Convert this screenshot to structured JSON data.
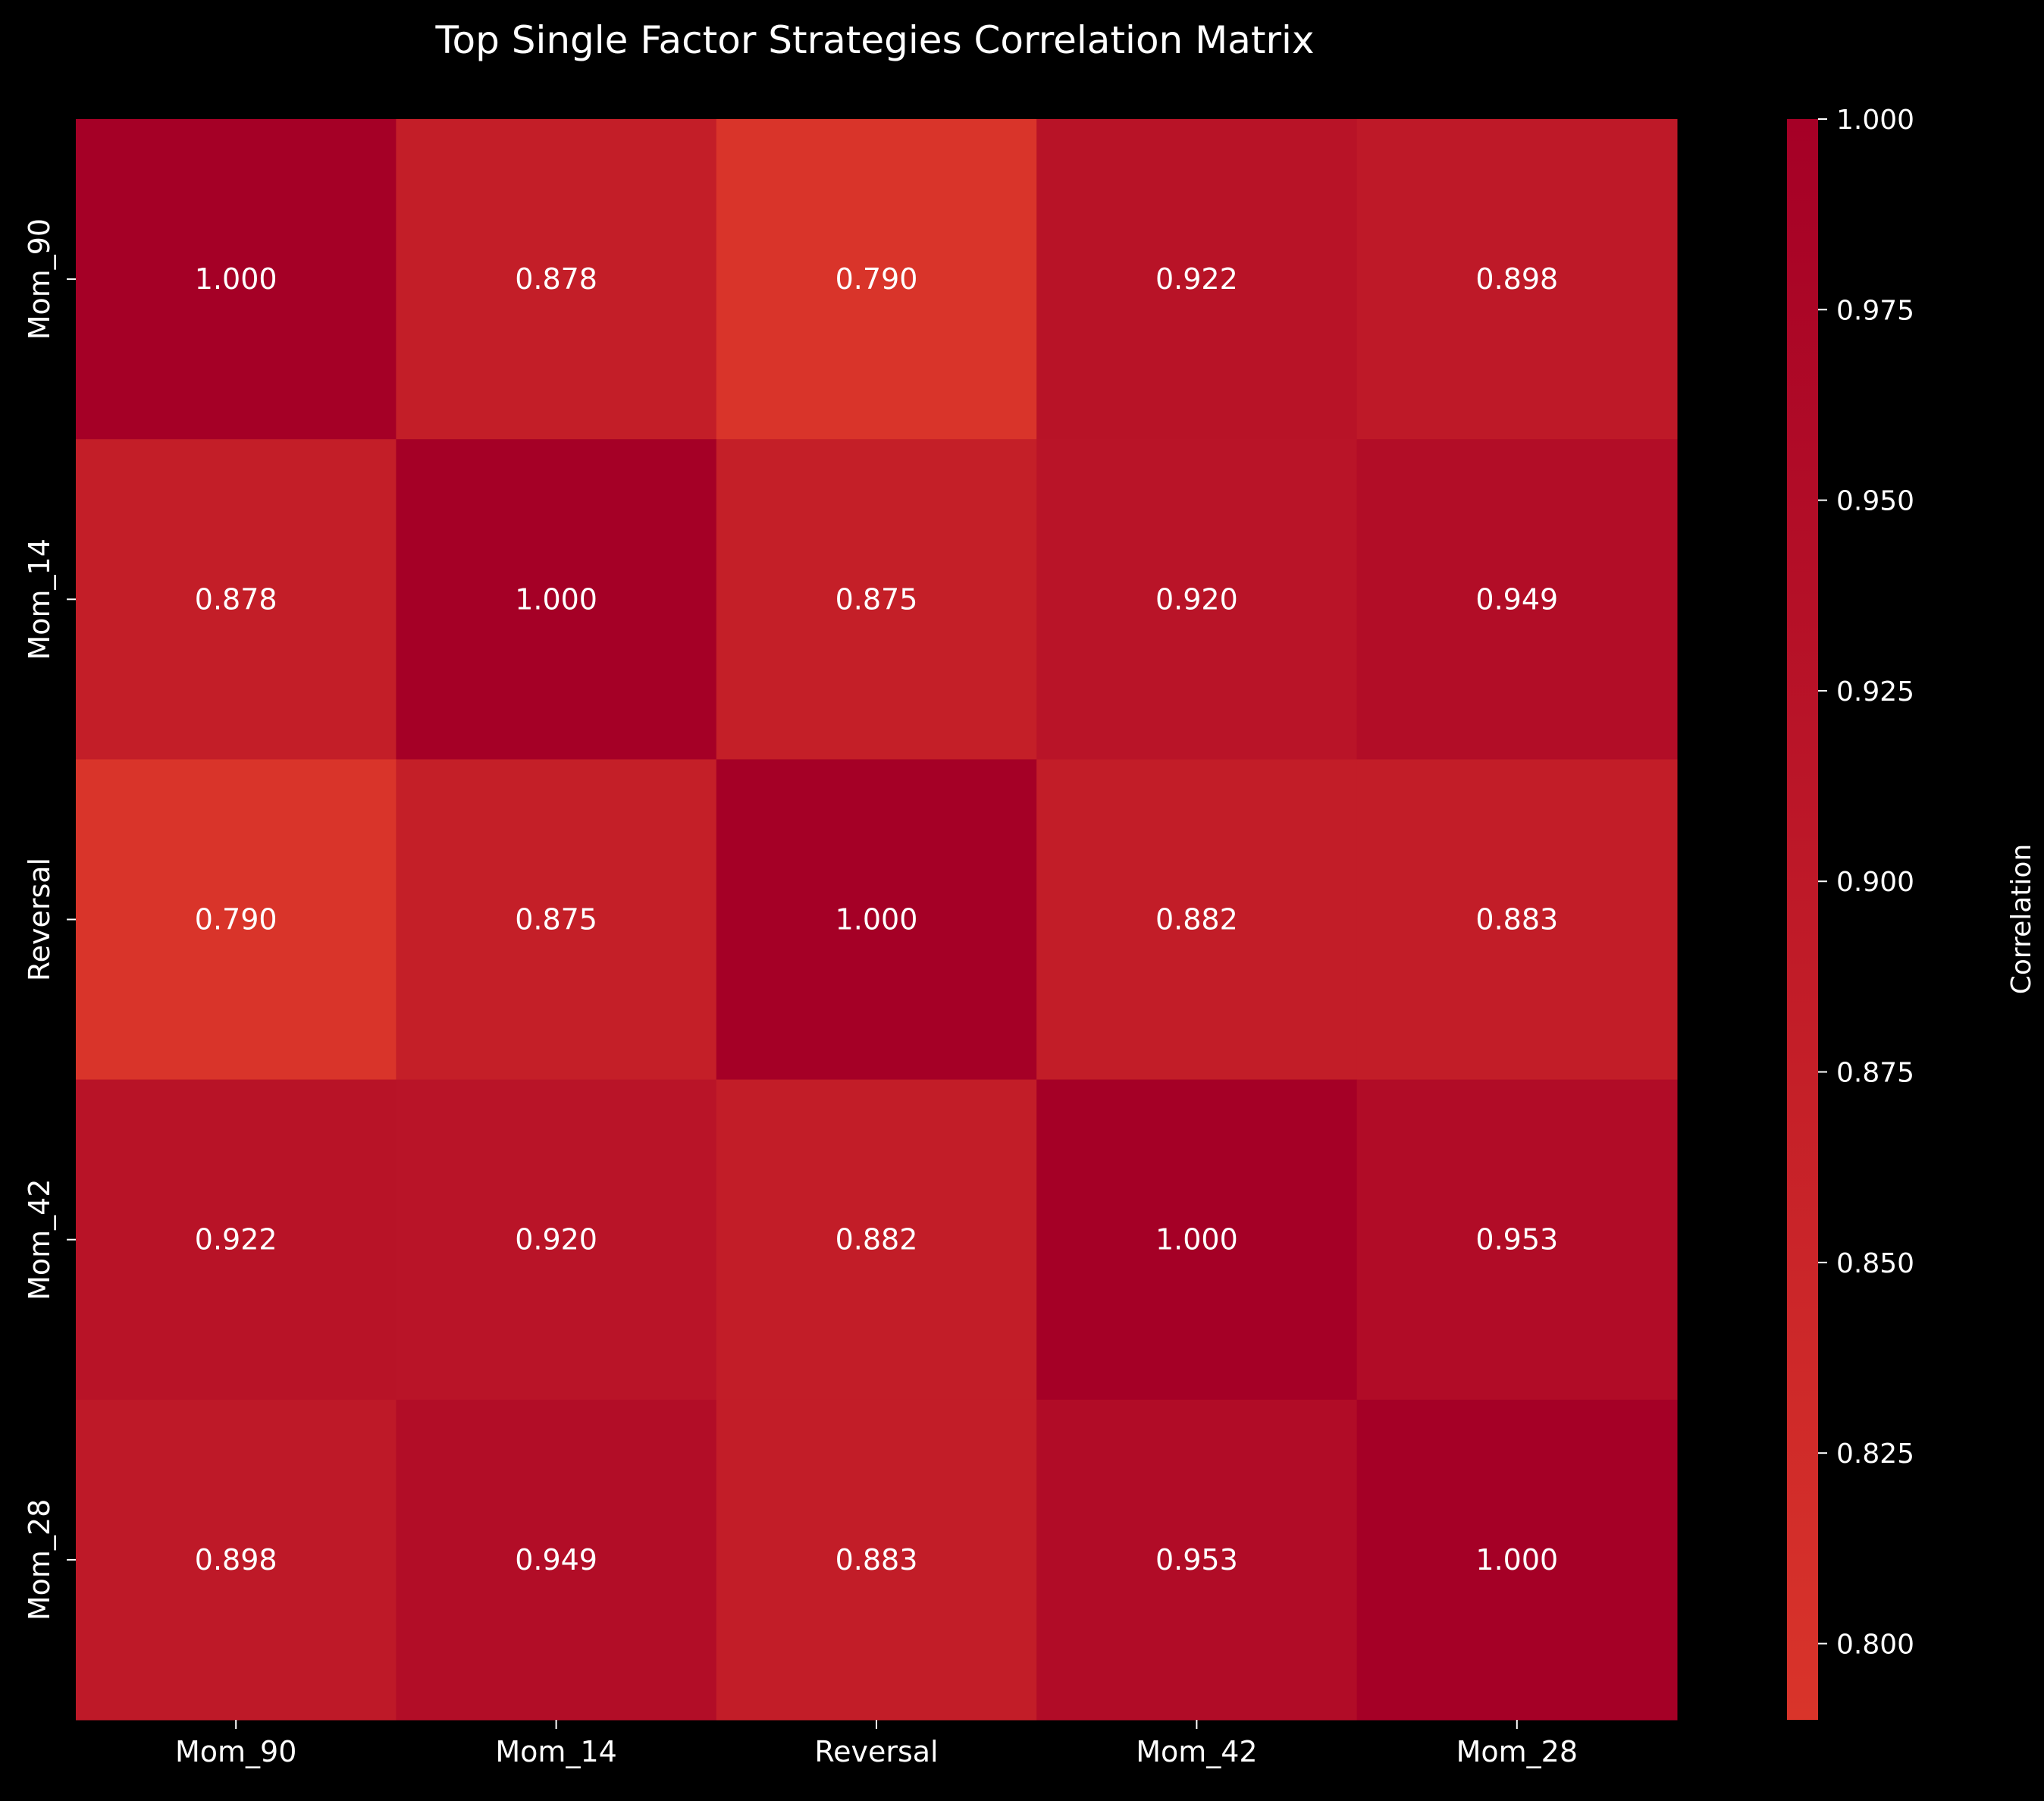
{
  "chart_data": {
    "type": "heatmap",
    "title": "Top Single Factor Strategies Correlation Matrix",
    "x_categories": [
      "Mom_90",
      "Mom_14",
      "Reversal",
      "Mom_42",
      "Mom_28"
    ],
    "y_categories": [
      "Mom_90",
      "Mom_14",
      "Reversal",
      "Mom_42",
      "Mom_28"
    ],
    "values": [
      [
        1.0,
        0.878,
        0.79,
        0.922,
        0.898
      ],
      [
        0.878,
        1.0,
        0.875,
        0.92,
        0.949
      ],
      [
        0.79,
        0.875,
        1.0,
        0.882,
        0.883
      ],
      [
        0.922,
        0.92,
        0.882,
        1.0,
        0.953
      ],
      [
        0.898,
        0.949,
        0.883,
        0.953,
        1.0
      ]
    ],
    "value_format": "0.000",
    "colorbar": {
      "label": "Correlation",
      "min": 0.79,
      "max": 1.0,
      "ticks": [
        0.8,
        0.825,
        0.85,
        0.875,
        0.9,
        0.925,
        0.95,
        0.975,
        1.0
      ],
      "tick_labels": [
        "0.800",
        "0.825",
        "0.850",
        "0.875",
        "0.900",
        "0.925",
        "0.950",
        "0.975",
        "1.000"
      ],
      "colors": [
        "#d9342a",
        "#a50026"
      ]
    },
    "background": "#000000",
    "text_color": "#ffffff"
  }
}
